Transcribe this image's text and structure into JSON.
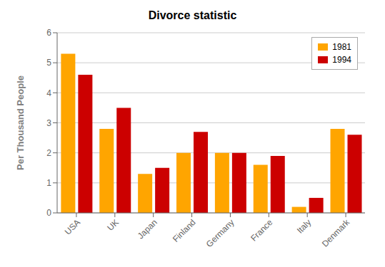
{
  "chart_data": {
    "type": "bar",
    "title": "Divorce statistic",
    "y_label": "Per Thousand People",
    "categories": [
      "USA",
      "UK",
      "Japan",
      "Finland",
      "Germany",
      "France",
      "Italy",
      "Denmark"
    ],
    "series": [
      {
        "name": "1981",
        "color": "#FFA500",
        "values": [
          5.3,
          2.8,
          1.3,
          2.0,
          2.0,
          1.6,
          0.2,
          2.8
        ]
      },
      {
        "name": "1994",
        "color": "#CC0000",
        "values": [
          4.6,
          3.5,
          1.5,
          2.7,
          2.0,
          1.9,
          0.5,
          2.6
        ]
      }
    ],
    "ylim": [
      0,
      6
    ],
    "yticks": [
      0,
      1,
      2,
      3,
      4,
      5,
      6
    ],
    "grid": true,
    "legend": "upper right"
  }
}
